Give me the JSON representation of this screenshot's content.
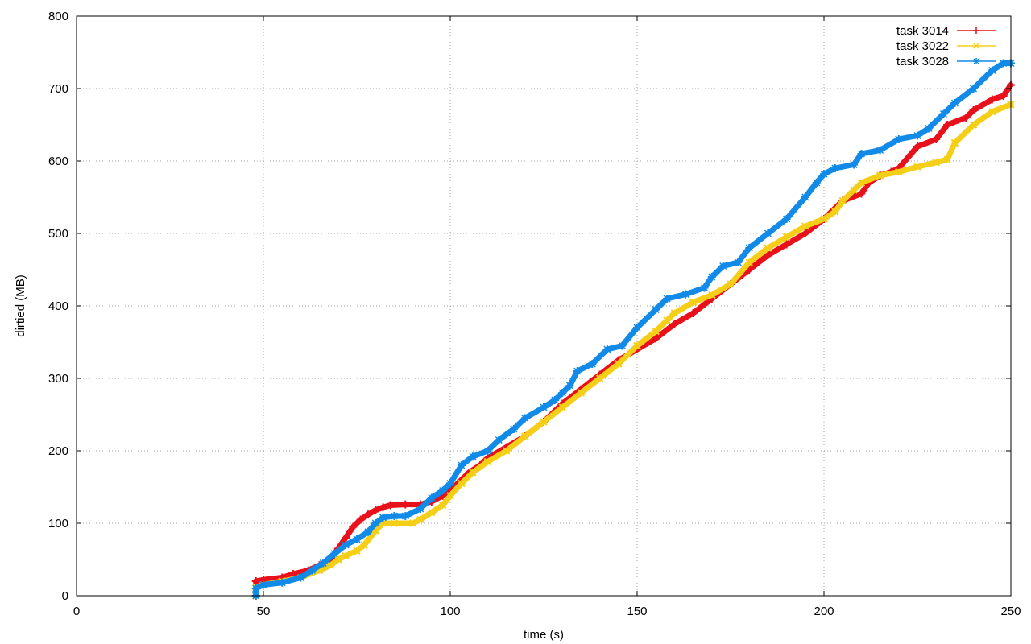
{
  "chart_data": {
    "type": "line",
    "title": "",
    "xlabel": "time (s)",
    "ylabel": "dirtied (MB)",
    "xlim": [
      0,
      250
    ],
    "ylim": [
      0,
      800
    ],
    "x_ticks": [
      0,
      50,
      100,
      150,
      200,
      250
    ],
    "y_ticks": [
      0,
      100,
      200,
      300,
      400,
      500,
      600,
      700,
      800
    ],
    "x_tick_labels": [
      "0",
      "50",
      "100",
      "150",
      "200",
      "250"
    ],
    "y_tick_labels": [
      "0",
      "100",
      "200",
      "300",
      "400",
      "500",
      "600",
      "700",
      "800"
    ],
    "grid": true,
    "legend_position": "top-right",
    "series": [
      {
        "name": "task 3014",
        "color": "#e8101a",
        "marker": "plus",
        "points": [
          [
            48,
            0
          ],
          [
            48,
            20
          ],
          [
            50,
            22
          ],
          [
            55,
            25
          ],
          [
            58,
            30
          ],
          [
            62,
            35
          ],
          [
            65,
            42
          ],
          [
            68,
            50
          ],
          [
            70,
            65
          ],
          [
            72,
            80
          ],
          [
            74,
            95
          ],
          [
            76,
            105
          ],
          [
            78,
            112
          ],
          [
            80,
            118
          ],
          [
            82,
            122
          ],
          [
            84,
            125
          ],
          [
            88,
            126
          ],
          [
            92,
            126
          ],
          [
            95,
            130
          ],
          [
            98,
            138
          ],
          [
            100,
            145
          ],
          [
            102,
            155
          ],
          [
            105,
            170
          ],
          [
            108,
            180
          ],
          [
            110,
            190
          ],
          [
            115,
            205
          ],
          [
            120,
            220
          ],
          [
            125,
            240
          ],
          [
            130,
            265
          ],
          [
            135,
            285
          ],
          [
            140,
            305
          ],
          [
            145,
            325
          ],
          [
            150,
            340
          ],
          [
            155,
            355
          ],
          [
            160,
            375
          ],
          [
            165,
            390
          ],
          [
            170,
            410
          ],
          [
            175,
            430
          ],
          [
            180,
            450
          ],
          [
            185,
            470
          ],
          [
            190,
            485
          ],
          [
            195,
            500
          ],
          [
            200,
            520
          ],
          [
            205,
            545
          ],
          [
            210,
            555
          ],
          [
            212,
            570
          ],
          [
            215,
            580
          ],
          [
            218,
            585
          ],
          [
            220,
            590
          ],
          [
            225,
            620
          ],
          [
            230,
            630
          ],
          [
            233,
            650
          ],
          [
            238,
            660
          ],
          [
            240,
            670
          ],
          [
            245,
            685
          ],
          [
            248,
            690
          ],
          [
            250,
            705
          ]
        ]
      },
      {
        "name": "task 3022",
        "color": "#f5cf17",
        "marker": "cross",
        "points": [
          [
            48,
            0
          ],
          [
            48,
            12
          ],
          [
            50,
            15
          ],
          [
            55,
            20
          ],
          [
            60,
            25
          ],
          [
            65,
            35
          ],
          [
            68,
            42
          ],
          [
            70,
            50
          ],
          [
            72,
            55
          ],
          [
            75,
            62
          ],
          [
            77,
            70
          ],
          [
            80,
            90
          ],
          [
            82,
            100
          ],
          [
            85,
            100
          ],
          [
            90,
            100
          ],
          [
            92,
            105
          ],
          [
            95,
            115
          ],
          [
            98,
            125
          ],
          [
            100,
            138
          ],
          [
            103,
            155
          ],
          [
            106,
            170
          ],
          [
            110,
            185
          ],
          [
            115,
            200
          ],
          [
            120,
            220
          ],
          [
            125,
            240
          ],
          [
            130,
            260
          ],
          [
            135,
            280
          ],
          [
            140,
            300
          ],
          [
            145,
            320
          ],
          [
            150,
            345
          ],
          [
            155,
            365
          ],
          [
            158,
            380
          ],
          [
            160,
            390
          ],
          [
            165,
            405
          ],
          [
            170,
            415
          ],
          [
            175,
            430
          ],
          [
            180,
            460
          ],
          [
            185,
            480
          ],
          [
            190,
            495
          ],
          [
            195,
            510
          ],
          [
            200,
            520
          ],
          [
            203,
            530
          ],
          [
            205,
            545
          ],
          [
            208,
            560
          ],
          [
            210,
            570
          ],
          [
            215,
            580
          ],
          [
            220,
            585
          ],
          [
            225,
            592
          ],
          [
            230,
            598
          ],
          [
            233,
            602
          ],
          [
            235,
            625
          ],
          [
            240,
            650
          ],
          [
            245,
            668
          ],
          [
            250,
            678
          ]
        ]
      },
      {
        "name": "task 3028",
        "color": "#118ae8",
        "marker": "star",
        "points": [
          [
            48,
            0
          ],
          [
            48,
            10
          ],
          [
            50,
            15
          ],
          [
            55,
            18
          ],
          [
            60,
            25
          ],
          [
            63,
            35
          ],
          [
            66,
            45
          ],
          [
            69,
            58
          ],
          [
            72,
            70
          ],
          [
            75,
            78
          ],
          [
            78,
            88
          ],
          [
            80,
            100
          ],
          [
            82,
            108
          ],
          [
            85,
            110
          ],
          [
            88,
            110
          ],
          [
            92,
            120
          ],
          [
            95,
            135
          ],
          [
            98,
            145
          ],
          [
            100,
            155
          ],
          [
            103,
            180
          ],
          [
            106,
            192
          ],
          [
            110,
            200
          ],
          [
            113,
            215
          ],
          [
            117,
            230
          ],
          [
            120,
            245
          ],
          [
            125,
            260
          ],
          [
            128,
            270
          ],
          [
            130,
            280
          ],
          [
            132,
            290
          ],
          [
            134,
            310
          ],
          [
            138,
            320
          ],
          [
            142,
            340
          ],
          [
            146,
            345
          ],
          [
            150,
            370
          ],
          [
            155,
            395
          ],
          [
            158,
            410
          ],
          [
            163,
            416
          ],
          [
            168,
            425
          ],
          [
            170,
            440
          ],
          [
            173,
            455
          ],
          [
            177,
            460
          ],
          [
            180,
            480
          ],
          [
            185,
            500
          ],
          [
            190,
            520
          ],
          [
            195,
            550
          ],
          [
            198,
            570
          ],
          [
            200,
            582
          ],
          [
            203,
            590
          ],
          [
            208,
            595
          ],
          [
            210,
            610
          ],
          [
            215,
            615
          ],
          [
            220,
            630
          ],
          [
            225,
            635
          ],
          [
            228,
            645
          ],
          [
            232,
            665
          ],
          [
            235,
            680
          ],
          [
            240,
            700
          ],
          [
            245,
            725
          ],
          [
            248,
            735
          ],
          [
            250,
            735
          ]
        ]
      }
    ]
  }
}
